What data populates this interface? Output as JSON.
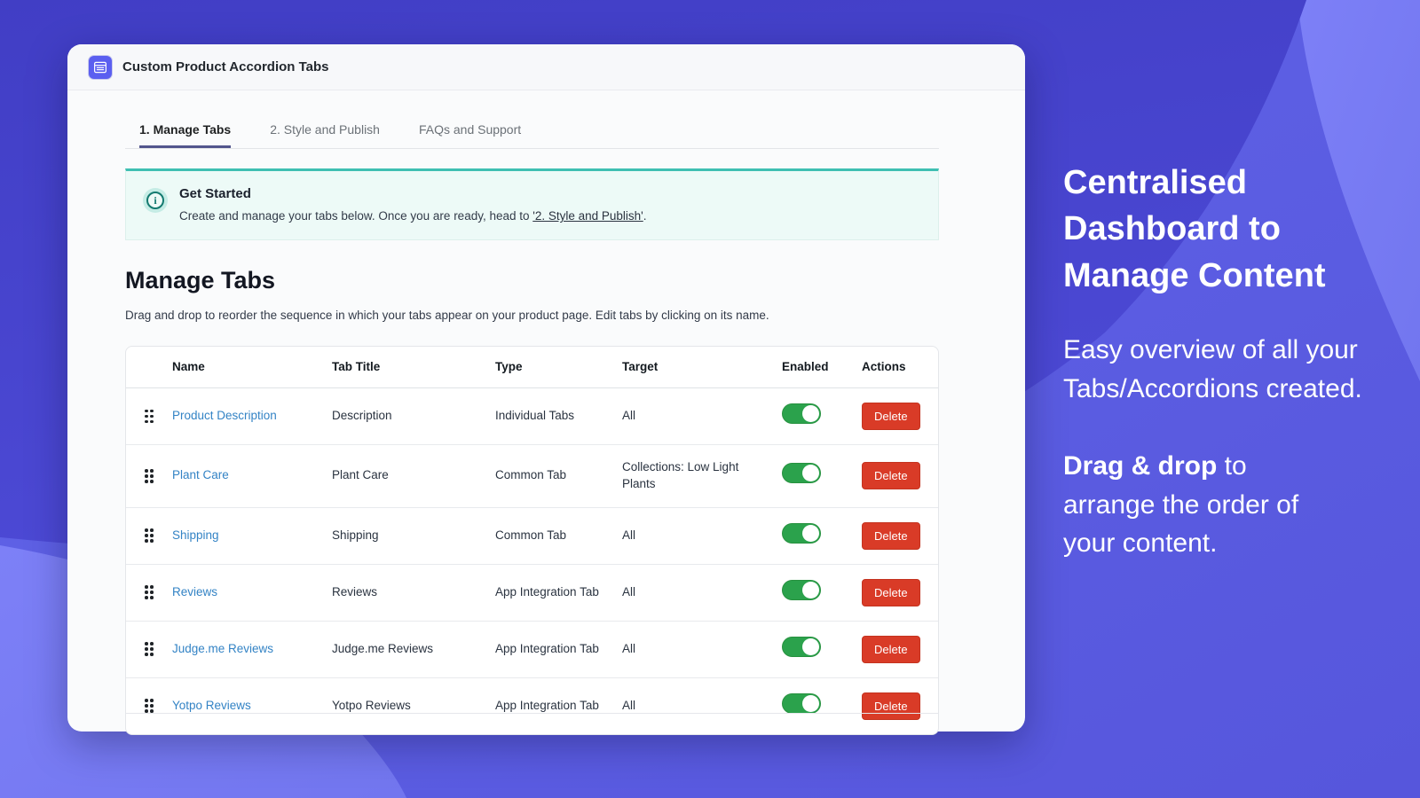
{
  "app": {
    "title": "Custom Product Accordion Tabs",
    "icon": "list-card-icon"
  },
  "tabs": [
    {
      "label": "1. Manage Tabs",
      "active": true
    },
    {
      "label": "2. Style and Publish",
      "active": false
    },
    {
      "label": "FAQs and Support",
      "active": false
    }
  ],
  "banner": {
    "icon": "info-icon",
    "title": "Get Started",
    "text_before": "Create and manage your tabs below. Once you are ready, head to ",
    "link_text": "'2. Style and Publish'",
    "text_after": "."
  },
  "section": {
    "heading": "Manage Tabs",
    "description": "Drag and drop to reorder the sequence in which your tabs appear on your product page. Edit tabs by clicking on its name."
  },
  "table": {
    "headers": [
      "",
      "Name",
      "Tab Title",
      "Type",
      "Target",
      "Enabled",
      "Actions"
    ],
    "delete_label": "Delete",
    "rows": [
      {
        "name": "Product Description",
        "tab_title": "Description",
        "type": "Individual Tabs",
        "target": "All",
        "enabled": true
      },
      {
        "name": "Plant Care",
        "tab_title": "Plant Care",
        "type": "Common Tab",
        "target": "Collections: Low Light Plants",
        "enabled": true
      },
      {
        "name": "Shipping",
        "tab_title": "Shipping",
        "type": "Common Tab",
        "target": "All",
        "enabled": true
      },
      {
        "name": "Reviews",
        "tab_title": "Reviews",
        "type": "App Integration Tab",
        "target": "All",
        "enabled": true
      },
      {
        "name": "Judge.me Reviews",
        "tab_title": "Judge.me Reviews",
        "type": "App Integration Tab",
        "target": "All",
        "enabled": true
      },
      {
        "name": "Yotpo Reviews",
        "tab_title": "Yotpo Reviews",
        "type": "App Integration Tab",
        "target": "All",
        "enabled": true
      }
    ]
  },
  "promo": {
    "heading": "Centralised Dashboard to Manage Content",
    "paragraph1": "Easy overview of all your Tabs/Accordions created.",
    "paragraph2_bold": "Drag & drop",
    "paragraph2_rest": " to arrange the order of your content."
  },
  "colors": {
    "accent_indigo": "#5b5ff0",
    "banner_teal": "#3fbfb2",
    "toggle_green": "#2ba24c",
    "delete_red": "#d93b27",
    "link_blue": "#3383c5",
    "bg_dark": "#4440c8",
    "bg_medium": "#5d5fe4",
    "bg_light": "#777af0"
  }
}
